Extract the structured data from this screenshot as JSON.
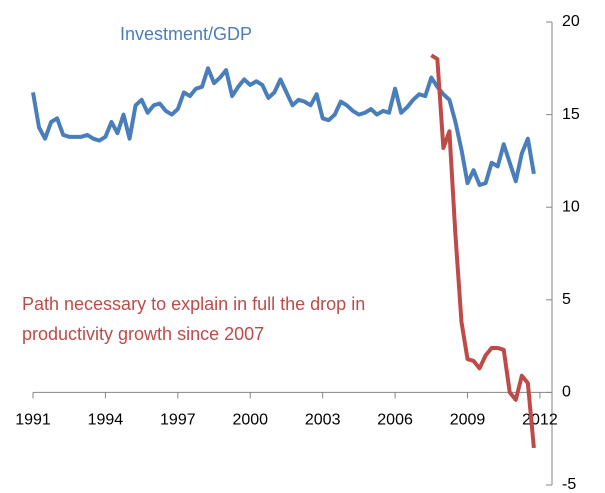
{
  "chart_data": {
    "type": "line",
    "xlim": [
      1991,
      2012.5
    ],
    "xticks": [
      1991,
      1994,
      1997,
      2000,
      2003,
      2006,
      2009,
      2012
    ],
    "ylim": [
      -5,
      20
    ],
    "yticks": [
      -5,
      0,
      5,
      10,
      15,
      20
    ],
    "y_axis_side": "right",
    "grid": false,
    "series": [
      {
        "name": "Investment/GDP",
        "color": "#4a7ebb",
        "x": [
          1991,
          1991.25,
          1991.5,
          1991.75,
          1992,
          1992.25,
          1992.5,
          1992.75,
          1993,
          1993.25,
          1993.5,
          1993.75,
          1994,
          1994.25,
          1994.5,
          1994.75,
          1995,
          1995.25,
          1995.5,
          1995.75,
          1996,
          1996.25,
          1996.5,
          1996.75,
          1997,
          1997.25,
          1997.5,
          1997.75,
          1998,
          1998.25,
          1998.5,
          1998.75,
          1999,
          1999.25,
          1999.5,
          1999.75,
          2000,
          2000.25,
          2000.5,
          2000.75,
          2001,
          2001.25,
          2001.5,
          2001.75,
          2002,
          2002.25,
          2002.5,
          2002.75,
          2003,
          2003.25,
          2003.5,
          2003.75,
          2004,
          2004.25,
          2004.5,
          2004.75,
          2005,
          2005.25,
          2005.5,
          2005.75,
          2006,
          2006.25,
          2006.5,
          2006.75,
          2007,
          2007.25,
          2007.5,
          2007.75,
          2008,
          2008.25,
          2008.5,
          2008.75,
          2009,
          2009.25,
          2009.5,
          2009.75,
          2010,
          2010.25,
          2010.5,
          2010.75,
          2011,
          2011.25,
          2011.5,
          2011.75
        ],
        "values": [
          16.2,
          14.3,
          13.7,
          14.6,
          14.8,
          13.9,
          13.8,
          13.8,
          13.8,
          13.9,
          13.7,
          13.6,
          13.8,
          14.6,
          14.0,
          15.0,
          13.7,
          15.5,
          15.8,
          15.1,
          15.5,
          15.6,
          15.2,
          15.0,
          15.3,
          16.2,
          16.0,
          16.4,
          16.5,
          17.5,
          16.7,
          17.0,
          17.4,
          16.0,
          16.5,
          16.9,
          16.6,
          16.8,
          16.6,
          15.9,
          16.2,
          16.9,
          16.2,
          15.5,
          15.8,
          15.7,
          15.5,
          16.1,
          14.8,
          14.7,
          15.0,
          15.7,
          15.5,
          15.2,
          15.0,
          15.1,
          15.3,
          15.0,
          15.2,
          15.1,
          16.4,
          15.1,
          15.4,
          15.8,
          16.1,
          16.0,
          17.0,
          16.5,
          16.1,
          15.8,
          14.6,
          13.1,
          11.3,
          12.0,
          11.2,
          11.3,
          12.4,
          12.2,
          13.4,
          12.4,
          11.4,
          12.9,
          13.7,
          11.8
        ]
      },
      {
        "name_lines": [
          "Path necessary to explain in full the drop in",
          "productivity growth since 2007"
        ],
        "color": "#be4b48",
        "x": [
          2007.5,
          2007.75,
          2008,
          2008.25,
          2008.5,
          2008.75,
          2009,
          2009.25,
          2009.5,
          2009.75,
          2010,
          2010.25,
          2010.5,
          2010.75,
          2011,
          2011.25,
          2011.5,
          2011.75
        ],
        "values": [
          18.2,
          18.0,
          13.2,
          14.1,
          8.5,
          3.8,
          1.8,
          1.7,
          1.3,
          2.0,
          2.4,
          2.4,
          2.3,
          0.0,
          -0.4,
          0.9,
          0.5,
          -3.0
        ]
      }
    ]
  }
}
